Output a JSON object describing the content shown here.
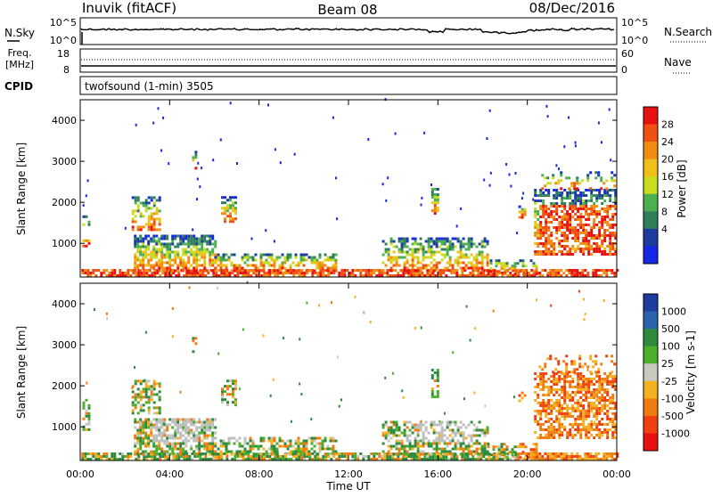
{
  "header": {
    "station": "Inuvik (fitACF)",
    "beam": "Beam 08",
    "date": "08/Dec/2016"
  },
  "top_panels": {
    "nsky_label": "N.Sky",
    "nsky_top": "10^5",
    "nsky_bottom": "10^0",
    "nsearch_label": "N.Search",
    "nsearch_top": "10^5",
    "nsearch_bottom": "10^0",
    "freq_label_1": "Freq.",
    "freq_label_2": "[MHz]",
    "freq_top": "18",
    "freq_bottom": "8",
    "nave_label": "Nave",
    "nave_top": "60",
    "nave_bottom": "0",
    "cpid_label": "CPID",
    "cpid_text": "twofsound (1-min) 3505"
  },
  "colors": {
    "velocity_scale": [
      "#1e3ca0",
      "#2a62b0",
      "#2e8a3c",
      "#4caf2c",
      "#c8c8c0",
      "#f5b020",
      "#f07c10",
      "#f04010",
      "#e81010"
    ],
    "power_scale": [
      "#1428e6",
      "#1e3ca0",
      "#2e7f5a",
      "#4caf50",
      "#c8dc20",
      "#f0c018",
      "#f08c10",
      "#f05010",
      "#e81010"
    ],
    "ground_scatter": "#bebebe"
  },
  "chart_data": [
    {
      "type": "heatmap",
      "name": "power",
      "ylabel": "Slant Range [km]",
      "colorbar_label": "Power [dB]",
      "colorbar_ticks": [
        "28",
        "24",
        "20",
        "16",
        "12",
        "8",
        "4"
      ],
      "x_range_hours": [
        0,
        24
      ],
      "ylim": [
        180,
        4500
      ],
      "yticks": [
        "1000",
        "2000",
        "3000",
        "4000"
      ]
    },
    {
      "type": "heatmap",
      "name": "velocity",
      "ylabel": "Slant Range [km]",
      "colorbar_label": "Velocity [m s-1]",
      "colorbar_ticks": [
        "1000",
        "500",
        "100",
        "25",
        "-25",
        "-100",
        "-500",
        "-1000"
      ],
      "x_range_hours": [
        0,
        24
      ],
      "ylim": [
        180,
        4500
      ],
      "yticks": [
        "1000",
        "2000",
        "3000",
        "4000"
      ],
      "xticks": [
        "00:00",
        "04:00",
        "08:00",
        "12:00",
        "16:00",
        "20:00",
        "00:00"
      ],
      "xlabel": "Time UT"
    }
  ]
}
